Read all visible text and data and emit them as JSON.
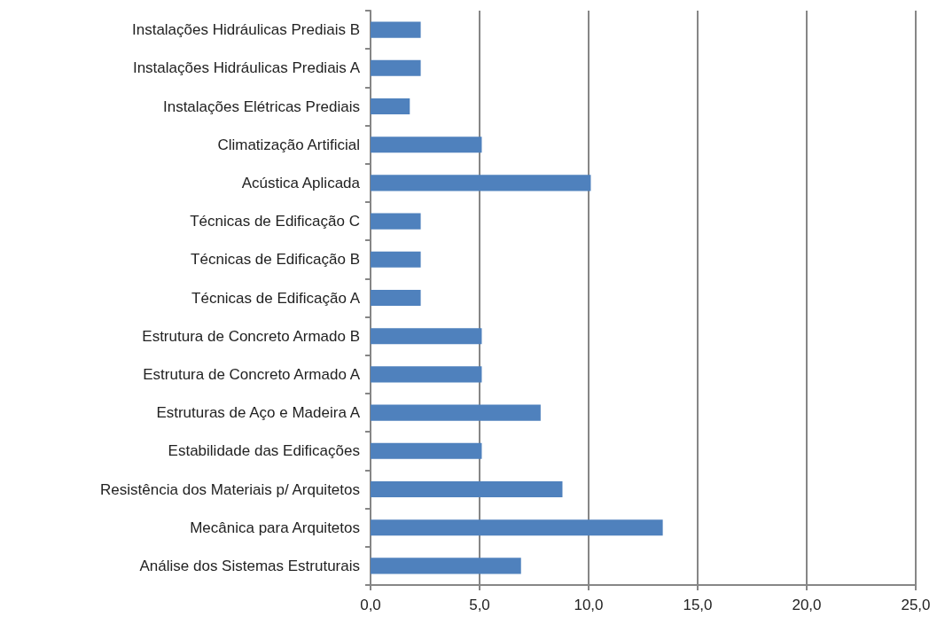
{
  "chart_data": {
    "type": "bar",
    "orientation": "horizontal",
    "categories": [
      "Instalações Hidráulicas Prediais B",
      "Instalações Hidráulicas Prediais A",
      "Instalações Elétricas Prediais",
      "Climatização Artificial",
      "Acústica Aplicada",
      "Técnicas de Edificação C",
      "Técnicas de Edificação B",
      "Técnicas de Edificação A",
      "Estrutura de Concreto Armado B",
      "Estrutura de Concreto Armado A",
      "Estruturas de Aço e Madeira A",
      "Estabilidade das Edificações",
      "Resistência dos Materiais p/ Arquitetos",
      "Mecânica para Arquitetos",
      "Análise dos Sistemas Estruturais"
    ],
    "values": [
      2.3,
      2.3,
      1.8,
      5.1,
      10.1,
      2.3,
      2.3,
      2.3,
      5.1,
      5.1,
      7.8,
      5.1,
      8.8,
      13.4,
      6.9
    ],
    "color": "#4f81bd",
    "xlim": [
      0,
      25
    ],
    "xticks": [
      {
        "value": 0,
        "label": "0,0"
      },
      {
        "value": 5,
        "label": "5,0"
      },
      {
        "value": 10,
        "label": "10,0"
      },
      {
        "value": 15,
        "label": "15,0"
      },
      {
        "value": 20,
        "label": "20,0"
      },
      {
        "value": 25,
        "label": "25,0"
      }
    ],
    "grid": "x"
  }
}
